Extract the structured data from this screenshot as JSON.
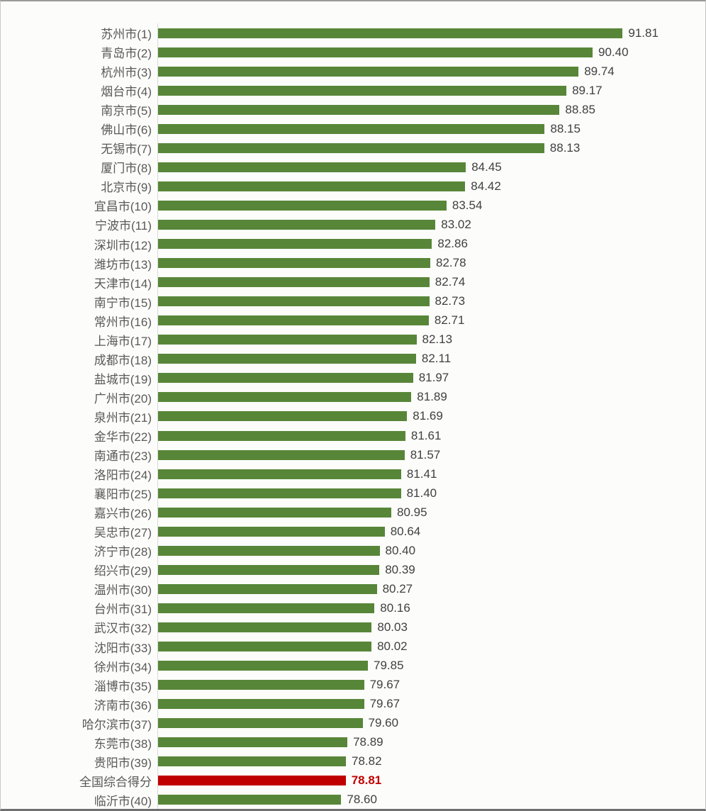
{
  "chart_data": {
    "type": "bar",
    "orientation": "horizontal",
    "title": "",
    "xlabel": "",
    "ylabel": "",
    "grid": false,
    "legend": false,
    "xlim": [
      70,
      95.5
    ],
    "bar_color": "#578638",
    "highlight_color": "#c00000",
    "label_color": "#595959",
    "value_color": "#404040",
    "axis_line_color": "#d9d9d9",
    "highlight_index": 39,
    "categories": [
      "苏州市(1)",
      "青岛市(2)",
      "杭州市(3)",
      "烟台市(4)",
      "南京市(5)",
      "佛山市(6)",
      "无锡市(7)",
      "厦门市(8)",
      "北京市(9)",
      "宜昌市(10)",
      "宁波市(11)",
      "深圳市(12)",
      "潍坊市(13)",
      "天津市(14)",
      "南宁市(15)",
      "常州市(16)",
      "上海市(17)",
      "成都市(18)",
      "盐城市(19)",
      "广州市(20)",
      "泉州市(21)",
      "金华市(22)",
      "南通市(23)",
      "洛阳市(24)",
      "襄阳市(25)",
      "嘉兴市(26)",
      "吴忠市(27)",
      "济宁市(28)",
      "绍兴市(29)",
      "温州市(30)",
      "台州市(31)",
      "武汉市(32)",
      "沈阳市(33)",
      "徐州市(34)",
      "淄博市(35)",
      "济南市(36)",
      "哈尔滨市(37)",
      "东莞市(38)",
      "贵阳市(39)",
      "全国综合得分",
      "临沂市(40)"
    ],
    "values": [
      91.81,
      90.4,
      89.74,
      89.17,
      88.85,
      88.15,
      88.13,
      84.45,
      84.42,
      83.54,
      83.02,
      82.86,
      82.78,
      82.74,
      82.73,
      82.71,
      82.13,
      82.11,
      81.97,
      81.89,
      81.69,
      81.61,
      81.57,
      81.41,
      81.4,
      80.95,
      80.64,
      80.4,
      80.39,
      80.27,
      80.16,
      80.03,
      80.02,
      79.85,
      79.67,
      79.67,
      79.6,
      78.89,
      78.82,
      78.81,
      78.6
    ],
    "value_labels": [
      "91.81",
      "90.40",
      "89.74",
      "89.17",
      "88.85",
      "88.15",
      "88.13",
      "84.45",
      "84.42",
      "83.54",
      "83.02",
      "82.86",
      "82.78",
      "82.74",
      "82.73",
      "82.71",
      "82.13",
      "82.11",
      "81.97",
      "81.89",
      "81.69",
      "81.61",
      "81.57",
      "81.41",
      "81.40",
      "80.95",
      "80.64",
      "80.40",
      "80.39",
      "80.27",
      "80.16",
      "80.03",
      "80.02",
      "79.85",
      "79.67",
      "79.67",
      "79.60",
      "78.89",
      "78.82",
      "78.81",
      "78.60"
    ]
  }
}
